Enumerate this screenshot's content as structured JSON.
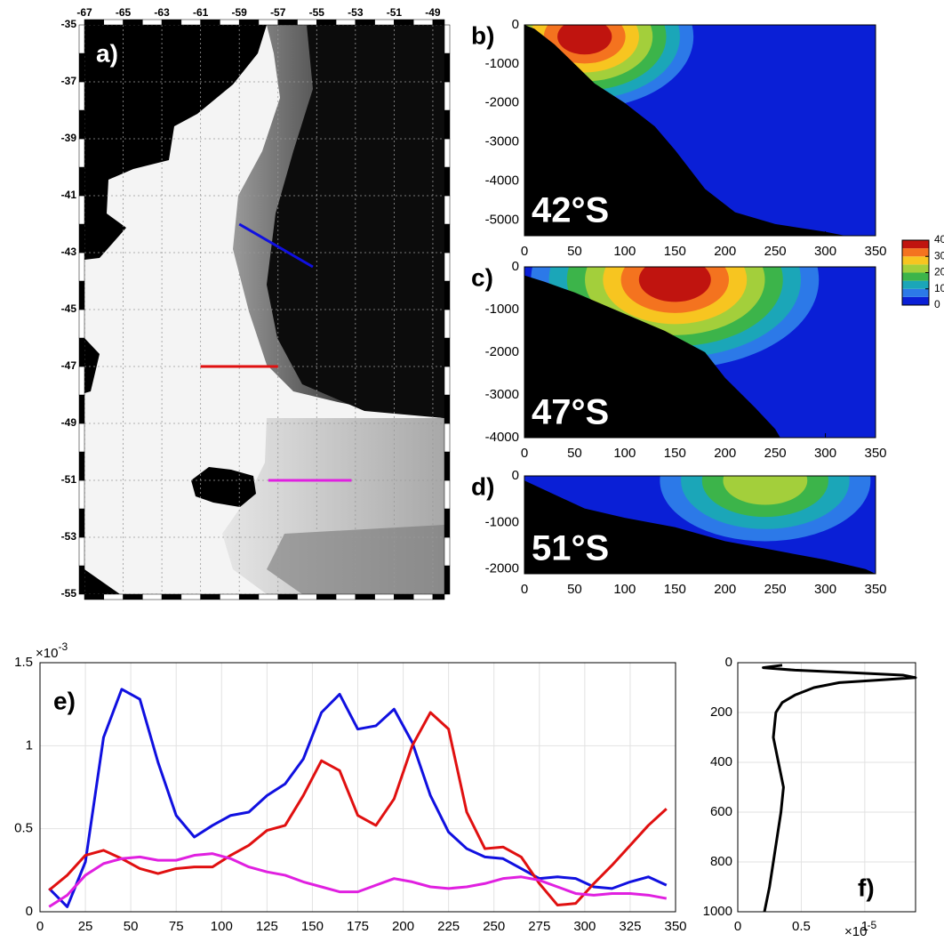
{
  "chart_data": [
    {
      "type": "map",
      "label": "a)",
      "xlim": [
        -67,
        -48.4
      ],
      "xticks": [
        -67,
        -65,
        -63,
        -61,
        -59,
        -57,
        -55,
        -53,
        -51,
        -49
      ],
      "ylim": [
        -55,
        -35
      ],
      "yticks": [
        -35,
        -37,
        -39,
        -41,
        -43,
        -45,
        -47,
        -49,
        -51,
        -53,
        -55
      ],
      "grid": true,
      "transects": [
        {
          "color": "#1010e0",
          "lon": [
            -59,
            -55.2
          ],
          "lat": [
            -42,
            -43.5
          ]
        },
        {
          "color": "#e01010",
          "lon": [
            -61,
            -57
          ],
          "lat": [
            -47,
            -47
          ]
        },
        {
          "color": "#e020e0",
          "lon": [
            -57.5,
            -53.2
          ],
          "lat": [
            -51,
            -51
          ]
        }
      ]
    },
    {
      "type": "section",
      "label": "b)",
      "title": "42°S",
      "xlim": [
        0,
        350
      ],
      "xticks": [
        0,
        50,
        100,
        150,
        200,
        250,
        300,
        350
      ],
      "ylim": [
        -5400,
        0
      ],
      "yticks": [
        0,
        -1000,
        -2000,
        -3000,
        -4000,
        -5000
      ],
      "bottom": {
        "x": [
          0,
          10,
          30,
          50,
          70,
          100,
          130,
          150,
          180,
          210,
          250,
          300,
          320
        ],
        "depth": [
          0,
          -100,
          -500,
          -1000,
          -1500,
          -2000,
          -2600,
          -3200,
          -4200,
          -4800,
          -5100,
          -5300,
          -5400
        ]
      },
      "core": {
        "x": 60,
        "depth": -300,
        "max": 40
      }
    },
    {
      "type": "section",
      "label": "c)",
      "title": "47°S",
      "xlim": [
        0,
        350
      ],
      "xticks": [
        0,
        50,
        100,
        150,
        200,
        250,
        300,
        350
      ],
      "ylim": [
        -4000,
        0
      ],
      "yticks": [
        0,
        -1000,
        -2000,
        -3000,
        -4000
      ],
      "bottom": {
        "x": [
          0,
          20,
          50,
          80,
          110,
          140,
          180,
          200,
          230,
          250,
          255
        ],
        "depth": [
          -200,
          -350,
          -600,
          -900,
          -1200,
          -1500,
          -2000,
          -2600,
          -3300,
          -3800,
          -4000
        ]
      },
      "core": {
        "x": 150,
        "depth": -300,
        "max": 40
      }
    },
    {
      "type": "section",
      "label": "d)",
      "title": "51°S",
      "xlim": [
        0,
        350
      ],
      "xticks": [
        0,
        50,
        100,
        150,
        200,
        250,
        300,
        350
      ],
      "ylim": [
        -2100,
        0
      ],
      "yticks": [
        0,
        -1000,
        -2000
      ],
      "bottom": {
        "x": [
          0,
          30,
          60,
          100,
          150,
          200,
          250,
          300,
          340,
          350
        ],
        "depth": [
          -100,
          -400,
          -700,
          -900,
          -1100,
          -1400,
          -1600,
          -1800,
          -2000,
          -2100
        ]
      },
      "core": {
        "x": 240,
        "depth": -100,
        "max": 25
      }
    },
    {
      "type": "colorbar",
      "clim": [
        0,
        40
      ],
      "ticks": [
        0,
        10,
        20,
        30,
        40
      ],
      "colors": [
        "#0a1fd6",
        "#2c79e8",
        "#1ba6b8",
        "#3cb44a",
        "#a3cf3b",
        "#f7c520",
        "#f4731f",
        "#c0140f"
      ]
    },
    {
      "type": "line",
      "label": "e)",
      "y_multiplier": {
        "base": "×10",
        "exponent": "-3"
      },
      "xlim": [
        0,
        350
      ],
      "xticks": [
        0,
        25,
        50,
        75,
        100,
        125,
        150,
        175,
        200,
        225,
        250,
        275,
        300,
        325,
        350
      ],
      "ylim": [
        0,
        1.5
      ],
      "yticks": [
        0,
        0.5,
        1,
        1.5
      ],
      "grid": true,
      "x": [
        5,
        15,
        25,
        35,
        45,
        55,
        65,
        75,
        85,
        95,
        105,
        115,
        125,
        135,
        145,
        155,
        165,
        175,
        185,
        195,
        205,
        215,
        225,
        235,
        245,
        255,
        265,
        275,
        285,
        295,
        305,
        315,
        325,
        335,
        345
      ],
      "series": [
        {
          "color": "#1010e0",
          "values": [
            0.14,
            0.03,
            0.3,
            1.05,
            1.34,
            1.28,
            0.9,
            0.58,
            0.45,
            0.52,
            0.58,
            0.6,
            0.7,
            0.77,
            0.92,
            1.2,
            1.31,
            1.1,
            1.12,
            1.22,
            1.02,
            0.7,
            0.48,
            0.38,
            0.33,
            0.32,
            0.26,
            0.2,
            0.21,
            0.2,
            0.15,
            0.14,
            0.18,
            0.21,
            0.16
          ]
        },
        {
          "color": "#e01010",
          "values": [
            0.13,
            0.22,
            0.34,
            0.37,
            0.32,
            0.26,
            0.23,
            0.26,
            0.27,
            0.27,
            0.34,
            0.4,
            0.49,
            0.52,
            0.7,
            0.91,
            0.85,
            0.58,
            0.52,
            0.68,
            1.0,
            1.2,
            1.1,
            0.6,
            0.38,
            0.39,
            0.33,
            0.17,
            0.04,
            0.05,
            0.17,
            0.28,
            0.4,
            0.52,
            0.62
          ]
        },
        {
          "color": "#e020e0",
          "values": [
            0.03,
            0.1,
            0.22,
            0.29,
            0.32,
            0.33,
            0.31,
            0.31,
            0.34,
            0.35,
            0.32,
            0.27,
            0.24,
            0.22,
            0.18,
            0.15,
            0.12,
            0.12,
            0.16,
            0.2,
            0.18,
            0.15,
            0.14,
            0.15,
            0.17,
            0.2,
            0.21,
            0.19,
            0.15,
            0.11,
            0.1,
            0.11,
            0.11,
            0.1,
            0.08
          ]
        }
      ]
    },
    {
      "type": "profile",
      "label": "f)",
      "x_multiplier": {
        "base": "×10",
        "exponent": "-5"
      },
      "xlim": [
        0,
        1.4
      ],
      "xticks": [
        0,
        0.5,
        1
      ],
      "ylim": [
        1000,
        0
      ],
      "yticks": [
        0,
        200,
        400,
        600,
        800,
        1000
      ],
      "grid": true,
      "color": "#000000",
      "depth": [
        10,
        20,
        30,
        40,
        50,
        60,
        70,
        80,
        100,
        130,
        160,
        200,
        300,
        400,
        500,
        600,
        700,
        800,
        900,
        1000
      ],
      "values": [
        0.35,
        0.2,
        0.45,
        0.9,
        1.3,
        1.4,
        1.1,
        0.8,
        0.6,
        0.45,
        0.35,
        0.3,
        0.28,
        0.32,
        0.36,
        0.34,
        0.31,
        0.28,
        0.25,
        0.21
      ]
    }
  ]
}
